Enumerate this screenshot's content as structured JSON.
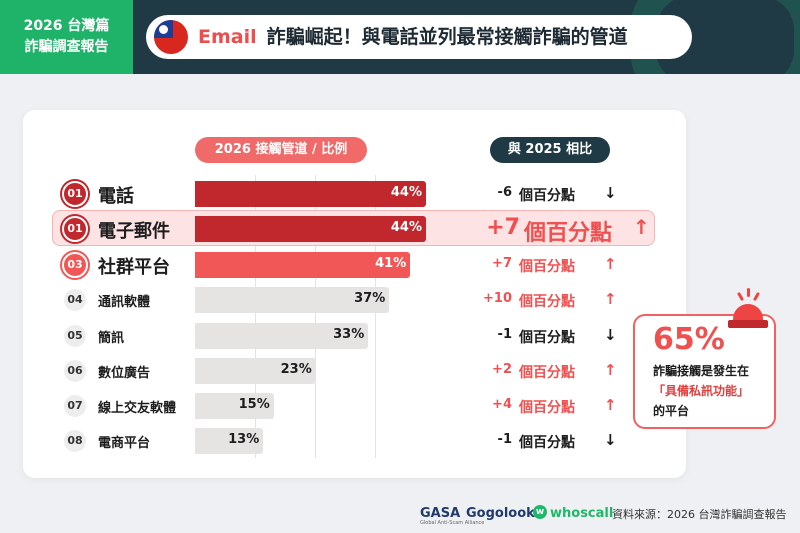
{
  "header": {
    "badge_line1": "2026 台灣篇",
    "badge_line2": "詐騙調查報告",
    "title_highlight": "Email",
    "title_rest": "詐騙崛起！與電話並列最常接觸詐騙的管道"
  },
  "chart_data": {
    "type": "bar",
    "orientation": "horizontal",
    "column_headers": [
      "2026 接觸管道 / 比例",
      "與 2025 相比"
    ],
    "categories": [
      "電話",
      "電子郵件",
      "社群平台",
      "通訊軟體",
      "簡訊",
      "數位廣告",
      "線上交友軟體",
      "電商平台"
    ],
    "ranks": [
      "01",
      "01",
      "03",
      "04",
      "05",
      "06",
      "07",
      "08"
    ],
    "values": [
      44,
      44,
      41,
      37,
      33,
      23,
      15,
      13
    ],
    "value_labels": [
      "44%",
      "44%",
      "41%",
      "37%",
      "33%",
      "23%",
      "15%",
      "13%"
    ],
    "change_values": [
      -6,
      7,
      7,
      10,
      -1,
      2,
      4,
      -1
    ],
    "change_numbers": [
      "-6",
      "+7",
      "+7",
      "+10",
      "-1",
      "+2",
      "+4",
      "-1"
    ],
    "change_unit": "個百分點",
    "change_arrows": [
      "down",
      "up",
      "up",
      "up",
      "down",
      "up",
      "up",
      "down"
    ],
    "unit": "%",
    "xlim": [
      0,
      50
    ],
    "highlighted_category": "電子郵件"
  },
  "callout": {
    "percent": "65%",
    "line1": "詐騙接觸是發生在",
    "line2": "「具備私訊功能」",
    "line3": "的平台"
  },
  "footer": {
    "logo1": "GASA",
    "logo1_sub": "Global Anti-Scam Alliance",
    "logo2": "Gogolook",
    "logo3": "whoscall",
    "source": "資料來源：2026 台灣詐騙調查報告"
  },
  "colors": {
    "header_bg": "#1f3a45",
    "badge_green": "#1fb36a",
    "accent_red": "#f06a6a",
    "dark_red": "#c0282d",
    "bright_red": "#f25757",
    "grey_bar": "#e6e3e3",
    "up_arrow": "#f05050"
  }
}
